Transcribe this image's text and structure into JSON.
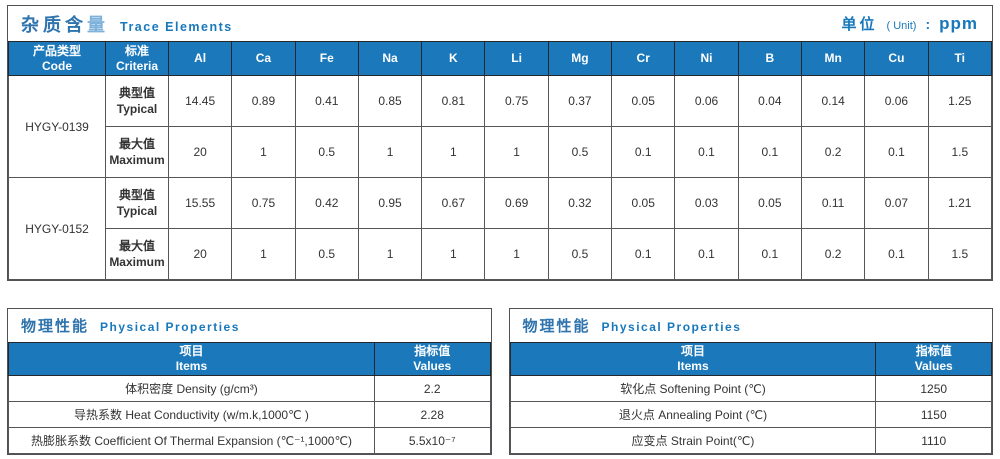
{
  "accent_blue": "#1B78BB",
  "title_blue": "#2F74AD",
  "title_blue_light": "#7FB2DB",
  "en_blue": "#1878BC",
  "trace": {
    "title_zh_main": "杂质含",
    "title_zh_accent": "量",
    "title_en": "Trace Elements",
    "unit_zh": "单位",
    "unit_en": "( Unit)",
    "unit_colon": ":",
    "unit_value": "ppm",
    "col_code_zh": "产品类型",
    "col_code_en": "Code",
    "col_criteria_zh": "标准",
    "col_criteria_en": "Criteria",
    "elements": [
      "Al",
      "Ca",
      "Fe",
      "Na",
      "K",
      "Li",
      "Mg",
      "Cr",
      "Ni",
      "B",
      "Mn",
      "Cu",
      "Ti"
    ],
    "groups": [
      {
        "code": "HYGY-0139",
        "rows": [
          {
            "criteria_zh": "典型值",
            "criteria_en": "Typical",
            "values": [
              "14.45",
              "0.89",
              "0.41",
              "0.85",
              "0.81",
              "0.75",
              "0.37",
              "0.05",
              "0.06",
              "0.04",
              "0.14",
              "0.06",
              "1.25"
            ]
          },
          {
            "criteria_zh": "最大值",
            "criteria_en": "Maximum",
            "values": [
              "20",
              "1",
              "0.5",
              "1",
              "1",
              "1",
              "0.5",
              "0.1",
              "0.1",
              "0.1",
              "0.2",
              "0.1",
              "1.5"
            ]
          }
        ]
      },
      {
        "code": "HYGY-0152",
        "rows": [
          {
            "criteria_zh": "典型值",
            "criteria_en": "Typical",
            "values": [
              "15.55",
              "0.75",
              "0.42",
              "0.95",
              "0.67",
              "0.69",
              "0.32",
              "0.05",
              "0.03",
              "0.05",
              "0.11",
              "0.07",
              "1.21"
            ]
          },
          {
            "criteria_zh": "最大值",
            "criteria_en": "Maximum",
            "values": [
              "20",
              "1",
              "0.5",
              "1",
              "1",
              "1",
              "0.5",
              "0.1",
              "0.1",
              "0.1",
              "0.2",
              "0.1",
              "1.5"
            ]
          }
        ]
      }
    ]
  },
  "physical_left": {
    "title_zh": "物理性能",
    "title_en": "Physical Properties",
    "col_items_zh": "项目",
    "col_items_en": "Items",
    "col_values_zh": "指标值",
    "col_values_en": "Values",
    "rows": [
      {
        "item": "体积密度 Density (g/cm³)",
        "value": "2.2"
      },
      {
        "item": "导热系数 Heat Conductivity (w/m.k,1000℃ )",
        "value": "2.28"
      },
      {
        "item": "热膨胀系数 Coefficient Of Thermal Expansion (℃⁻¹,1000℃)",
        "value": "5.5x10⁻⁷"
      }
    ]
  },
  "physical_right": {
    "title_zh": "物理性能",
    "title_en": "Physical Properties",
    "col_items_zh": "项目",
    "col_items_en": "Items",
    "col_values_zh": "指标值",
    "col_values_en": "Values",
    "rows": [
      {
        "item": "软化点 Softening Point (℃)",
        "value": "1250"
      },
      {
        "item": "退火点 Annealing Point (℃)",
        "value": "1150"
      },
      {
        "item": "应变点 Strain Point(℃)",
        "value": "1110"
      }
    ]
  }
}
